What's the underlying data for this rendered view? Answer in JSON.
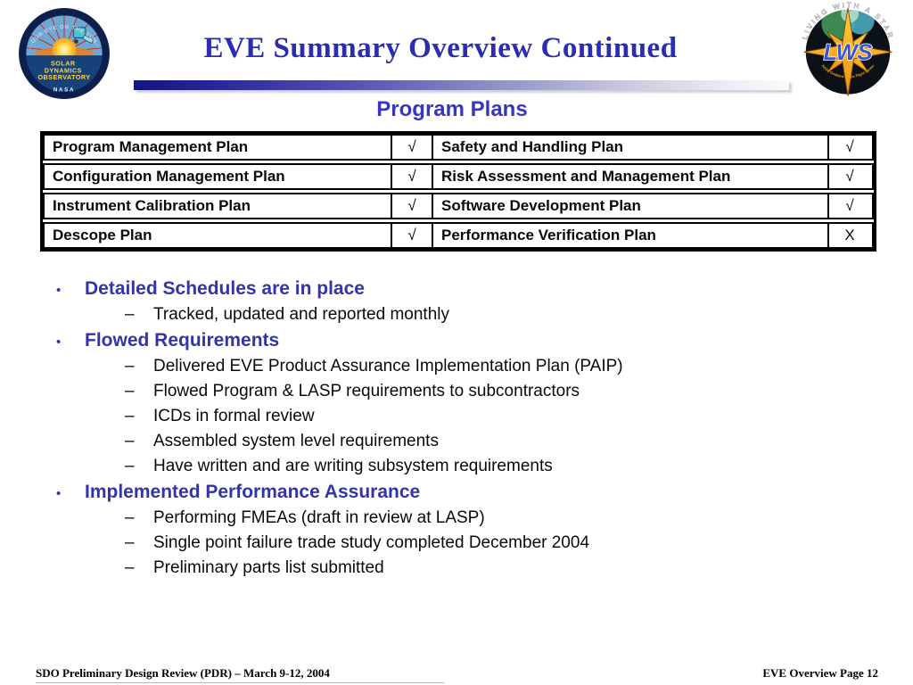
{
  "slide": {
    "title": "EVE Summary Overview Continued",
    "subtitle": "Program Plans",
    "footer_left": "SDO Preliminary Design Review (PDR) – March 9-12, 2004",
    "footer_right": "EVE Overview Page 12"
  },
  "logos": {
    "sdo": {
      "arc_text": "...OUR EYE ON THE SUN...",
      "line1": "SOLAR",
      "line2": "DYNAMICS",
      "line3": "OBSERVATORY",
      "bottom": "NASA"
    },
    "lws": {
      "arc_text": "LIVING WITH A STAR",
      "center": "LWS",
      "sub_arc": "NASA Goddard Space Flight Center"
    }
  },
  "plans_table": {
    "rows": [
      {
        "left_plan": "Program Management Plan",
        "left_status": "√",
        "right_plan": "Safety and Handling Plan",
        "right_status": "√"
      },
      {
        "left_plan": "Configuration Management Plan",
        "left_status": "√",
        "right_plan": "Risk Assessment and Management Plan",
        "right_status": "√"
      },
      {
        "left_plan": "Instrument Calibration Plan",
        "left_status": "√",
        "right_plan": "Software Development Plan",
        "right_status": "√"
      },
      {
        "left_plan": "Descope Plan",
        "left_status": "√",
        "right_plan": "Performance Verification Plan",
        "right_status": "X"
      }
    ]
  },
  "bullets": [
    {
      "label": "Detailed Schedules are in place",
      "sub": [
        "Tracked, updated and reported monthly"
      ]
    },
    {
      "label": "Flowed Requirements",
      "sub": [
        "Delivered EVE Product Assurance Implementation Plan (PAIP)",
        "Flowed Program & LASP requirements to subcontractors",
        "ICDs in formal review",
        "Assembled system level requirements",
        "Have written and are writing subsystem requirements"
      ]
    },
    {
      "label": "Implemented Performance Assurance",
      "sub": [
        "Performing FMEAs (draft in review at LASP)",
        "Single point failure trade study completed December 2004",
        "Preliminary parts list submitted"
      ]
    }
  ],
  "markers": {
    "bullet": "•",
    "dash": "–"
  },
  "colors": {
    "title_blue": "#2c2cb0",
    "subtitle_blue": "#3636c0",
    "bullet_heading_blue": "#3434aa",
    "body_text": "#0a0a0a",
    "gradient_bar_start": "#15157f",
    "gradient_bar_end": "#fbfbfd"
  }
}
